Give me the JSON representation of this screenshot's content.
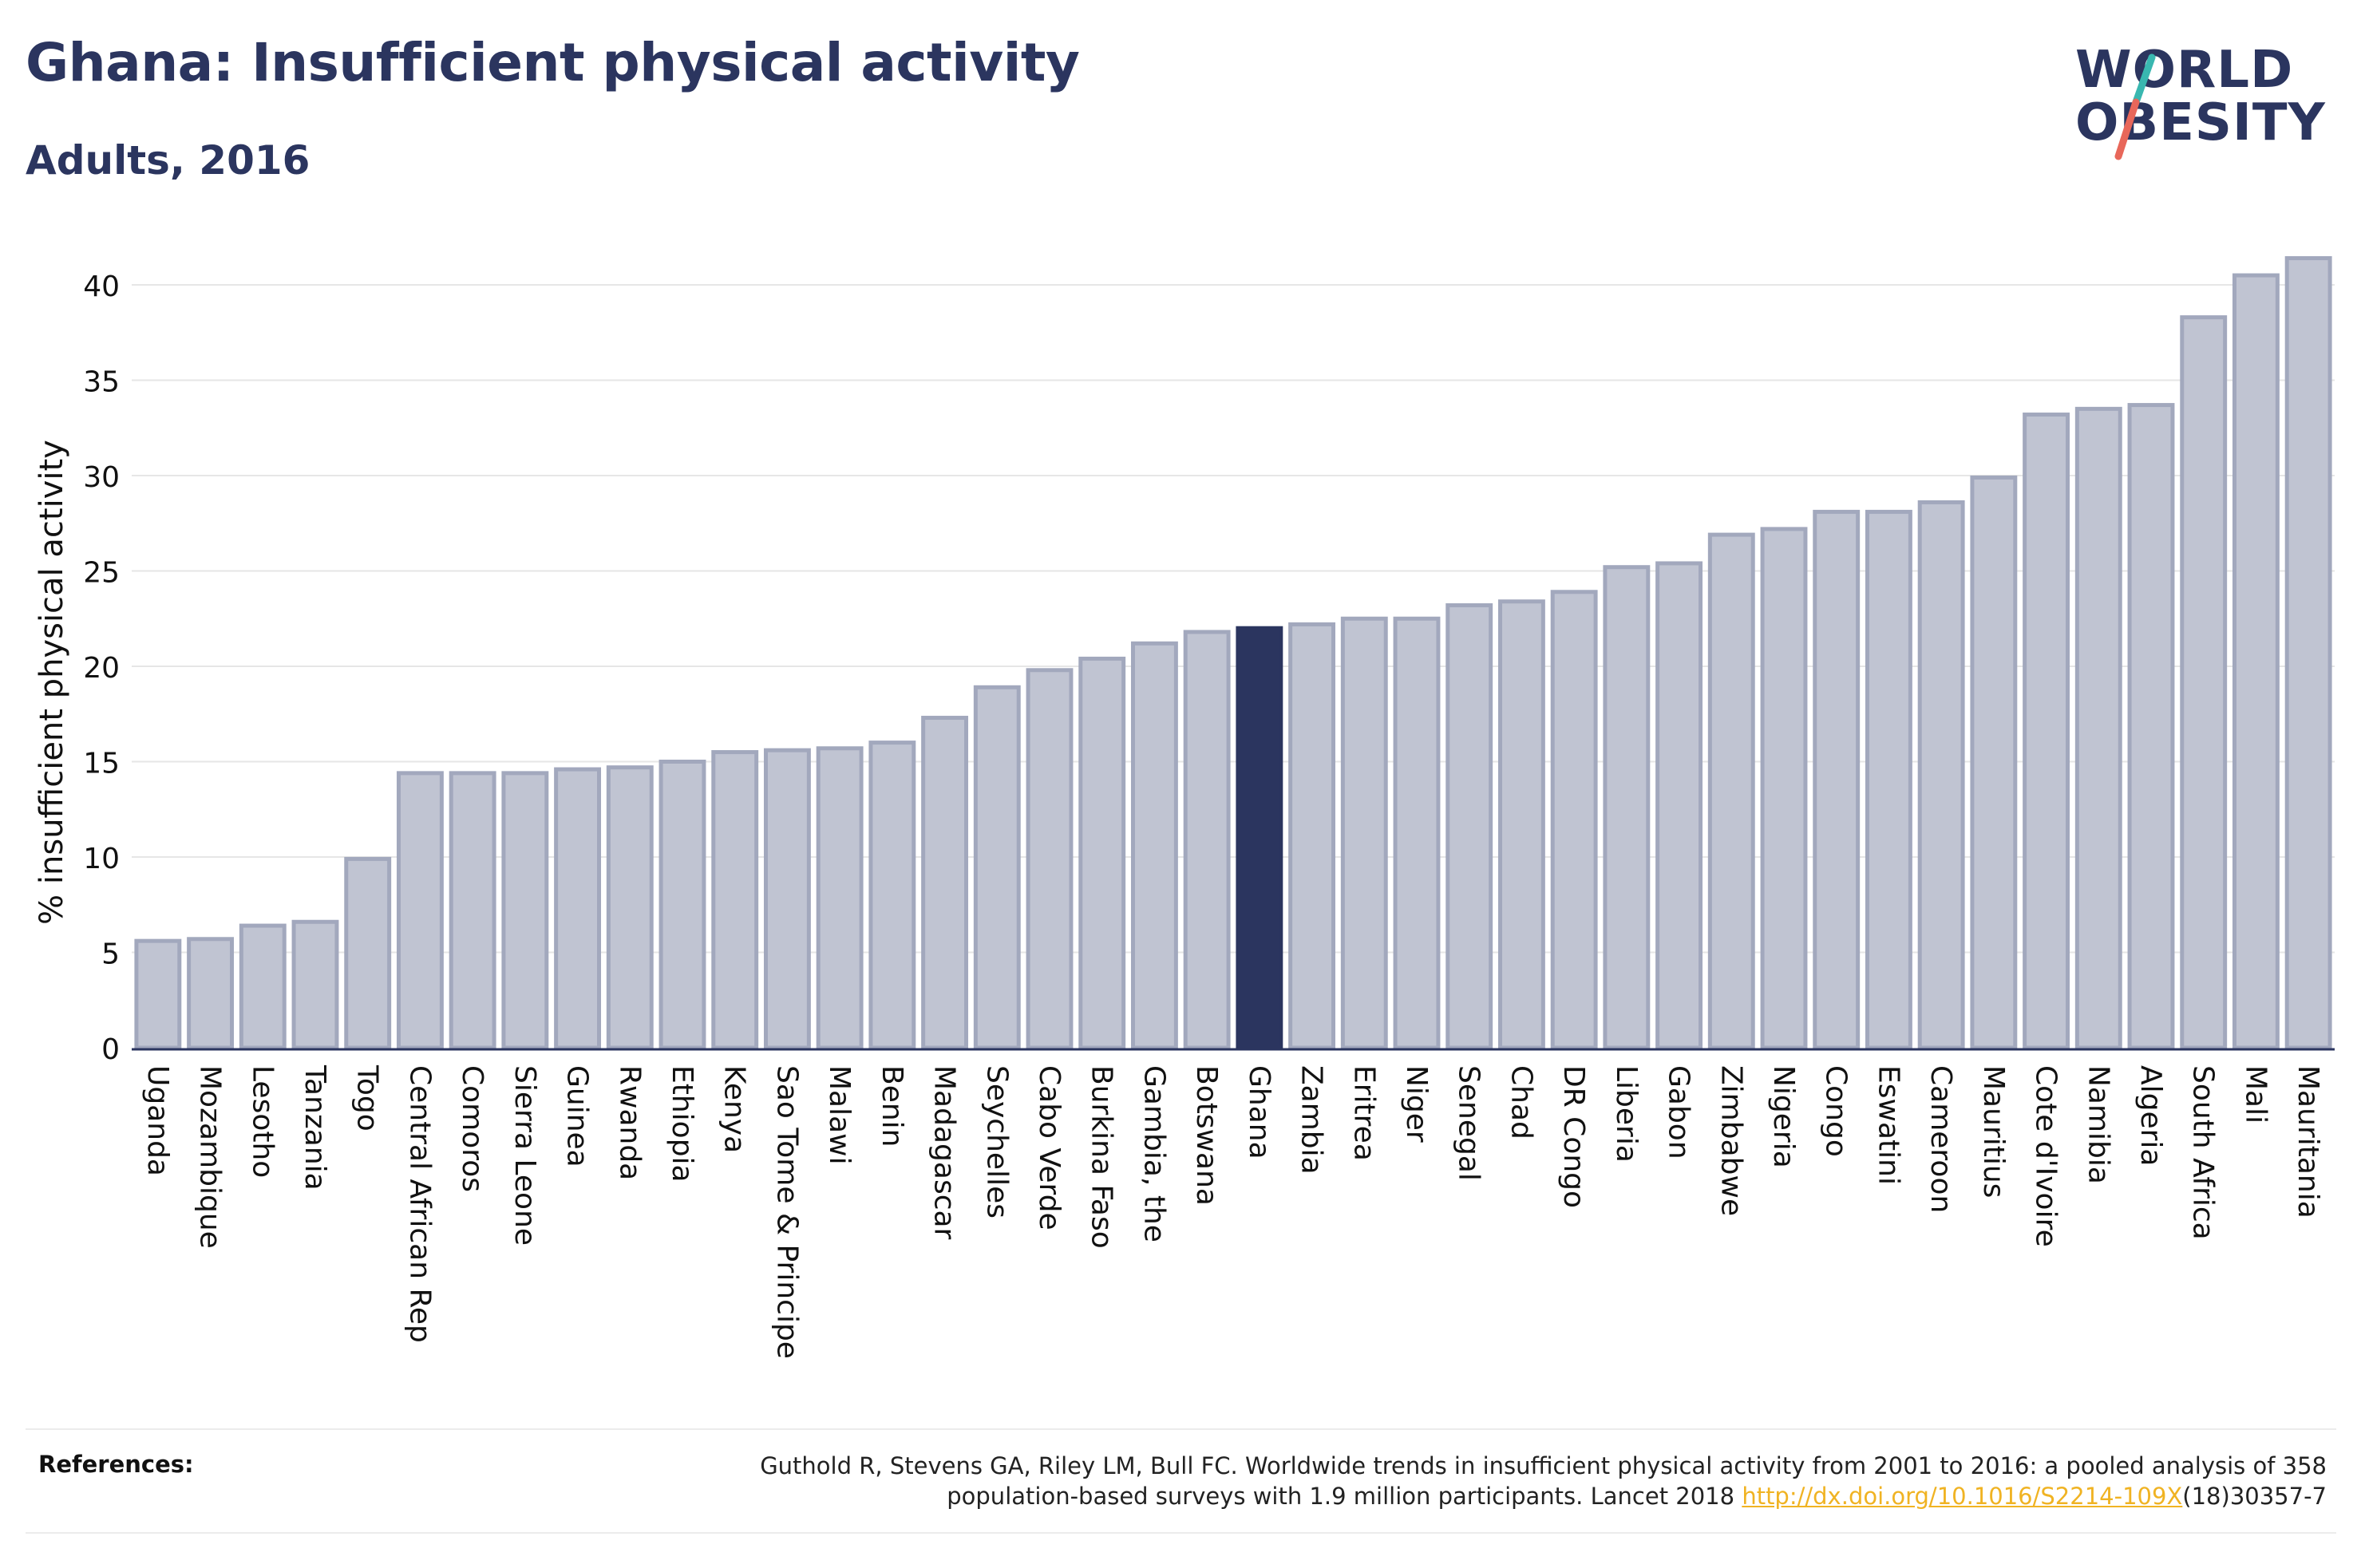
{
  "header": {
    "title": "Ghana: Insufficient physical activity",
    "subtitle": "Adults, 2016"
  },
  "logo": {
    "line1": "WORLD",
    "line2": "OBESITY",
    "colors": {
      "text": "#2b355f",
      "slash_top": "#39b7b0",
      "slash_bottom": "#e8675a"
    }
  },
  "references": {
    "label": "References:",
    "text_line1": "Guthold R, Stevens GA, Riley LM, Bull FC. Worldwide trends in insufficient physical activity from 2001 to 2016: a pooled analysis of 358",
    "text_line2_prefix": "population-based surveys with 1.9 million participants. Lancet 2018 ",
    "link": "http://dx.doi.org/10.1016/S2214-109X",
    "text_line2_suffix": "(18)30357-7"
  },
  "chart_data": {
    "type": "bar",
    "title": "Ghana: Insufficient physical activity",
    "subtitle": "Adults, 2016",
    "xlabel": "",
    "ylabel": "% insufficient physical activity",
    "ylim": [
      0,
      42
    ],
    "yticks": [
      0,
      5,
      10,
      15,
      20,
      25,
      30,
      35,
      40
    ],
    "grid": true,
    "highlight": "Ghana",
    "colors": {
      "bar": "#c0c4d2",
      "bar_border": "#a2a8bd",
      "highlight": "#2b355f",
      "grid": "#e6e6e6",
      "axis": "#2b355f"
    },
    "categories": [
      "Uganda",
      "Mozambique",
      "Lesotho",
      "Tanzania",
      "Togo",
      "Central African Rep",
      "Comoros",
      "Sierra Leone",
      "Guinea",
      "Rwanda",
      "Ethiopia",
      "Kenya",
      "Sao Tome & Principe",
      "Malawi",
      "Benin",
      "Madagascar",
      "Seychelles",
      "Cabo Verde",
      "Burkina Faso",
      "Gambia, the",
      "Botswana",
      "Ghana",
      "Zambia",
      "Eritrea",
      "Niger",
      "Senegal",
      "Chad",
      "DR Congo",
      "Liberia",
      "Gabon",
      "Zimbabwe",
      "Nigeria",
      "Congo",
      "Eswatini",
      "Cameroon",
      "Mauritius",
      "Cote d'Ivoire",
      "Namibia",
      "Algeria",
      "South Africa",
      "Mali",
      "Mauritania"
    ],
    "values": [
      5.6,
      5.7,
      6.4,
      6.6,
      9.9,
      14.4,
      14.4,
      14.4,
      14.6,
      14.7,
      15.0,
      15.5,
      15.6,
      15.7,
      16.0,
      17.3,
      18.9,
      19.8,
      20.4,
      21.2,
      21.8,
      22.0,
      22.2,
      22.5,
      22.5,
      23.2,
      23.4,
      23.9,
      25.2,
      25.4,
      26.9,
      27.2,
      28.1,
      28.1,
      28.6,
      29.9,
      33.2,
      33.5,
      33.7,
      38.3,
      40.5,
      41.4
    ]
  }
}
